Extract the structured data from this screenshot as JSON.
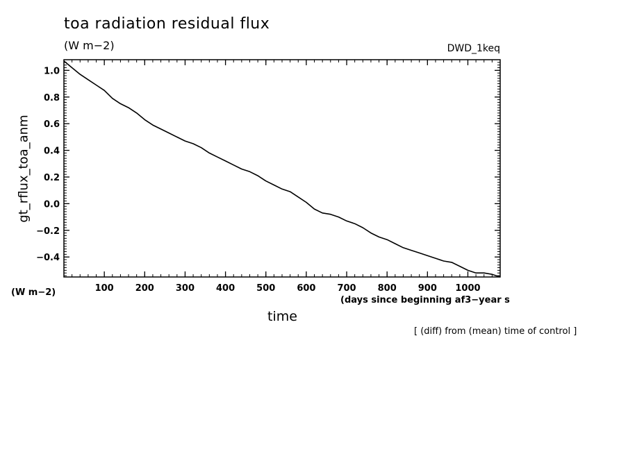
{
  "header": {
    "title": "toa radiation residual flux",
    "units_top": "(W m−2)",
    "run_id": "DWD_1keq"
  },
  "footer": {
    "units_bottom": "(W m−2)",
    "x_units": "(days since beginning af3−year s",
    "note": "[ (diff) from (mean) time of control ]"
  },
  "chart_data": {
    "type": "line",
    "title": "toa radiation residual flux",
    "xlabel": "time",
    "ylabel": "gt_rflux_toa_anm",
    "xlim": [
      0,
      1080
    ],
    "ylim": [
      -0.55,
      1.08
    ],
    "x_ticks": [
      100,
      200,
      300,
      400,
      500,
      600,
      700,
      800,
      900,
      1000
    ],
    "y_ticks": [
      1.0,
      0.8,
      0.6,
      0.4,
      0.2,
      0.0,
      -0.2,
      -0.4
    ],
    "y_tick_labels": [
      "1.0",
      "0.8",
      "0.6",
      "0.4",
      "0.2",
      "0.0",
      "−0.2",
      "−0.4"
    ],
    "grid": false,
    "series": [
      {
        "x": [
          0,
          20,
          40,
          60,
          80,
          100,
          120,
          140,
          160,
          180,
          200,
          220,
          240,
          260,
          280,
          300,
          320,
          340,
          360,
          380,
          400,
          420,
          440,
          460,
          480,
          500,
          520,
          540,
          560,
          580,
          600,
          620,
          640,
          660,
          680,
          700,
          720,
          740,
          760,
          780,
          800,
          820,
          840,
          860,
          880,
          900,
          920,
          940,
          960,
          980,
          1000,
          1020,
          1040,
          1060,
          1080
        ],
        "y": [
          1.07,
          1.02,
          0.97,
          0.93,
          0.89,
          0.85,
          0.79,
          0.75,
          0.72,
          0.68,
          0.63,
          0.59,
          0.56,
          0.53,
          0.5,
          0.47,
          0.45,
          0.42,
          0.38,
          0.35,
          0.32,
          0.29,
          0.26,
          0.24,
          0.21,
          0.17,
          0.14,
          0.11,
          0.09,
          0.05,
          0.01,
          -0.04,
          -0.07,
          -0.08,
          -0.1,
          -0.13,
          -0.15,
          -0.18,
          -0.22,
          -0.25,
          -0.27,
          -0.3,
          -0.33,
          -0.35,
          -0.37,
          -0.39,
          -0.41,
          -0.43,
          -0.44,
          -0.47,
          -0.5,
          -0.52,
          -0.52,
          -0.53,
          -0.55
        ]
      }
    ]
  }
}
